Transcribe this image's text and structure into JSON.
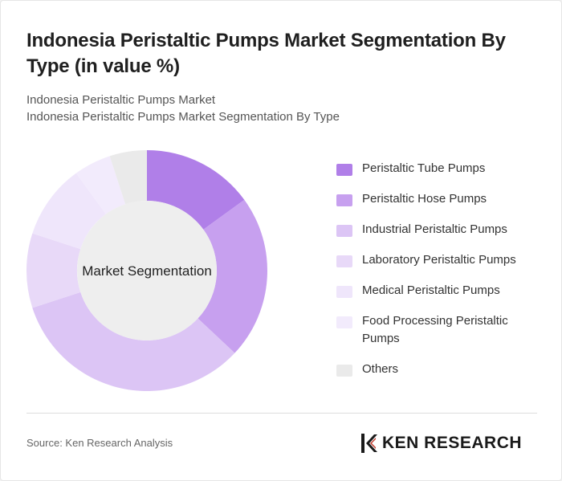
{
  "title": "Indonesia Peristaltic Pumps Market Segmentation By Type (in value %)",
  "subtitle_line1": "Indonesia Peristaltic Pumps Market",
  "subtitle_line2": "Indonesia Peristaltic Pumps Market Segmentation By Type",
  "source": "Source: Ken Research Analysis",
  "logo": {
    "text": "KEN RESEARCH",
    "icon": "ken-research-k-logo-icon"
  },
  "chart_data": {
    "type": "pie",
    "variant": "donut",
    "center_label": "Market Segmentation",
    "legend_position": "right",
    "categories": [
      "Peristaltic Tube Pumps",
      "Peristaltic Hose Pumps",
      "Industrial Peristaltic Pumps",
      "Laboratory Peristaltic Pumps",
      "Medical Peristaltic Pumps",
      "Food Processing Peristaltic Pumps",
      "Others"
    ],
    "values": [
      15,
      22,
      33,
      10,
      10,
      5,
      5
    ],
    "unit": "%",
    "colors": [
      "#b07fe8",
      "#c7a0ef",
      "#dcc5f5",
      "#e8d9f8",
      "#efe6fb",
      "#f2ebfc",
      "#eaeaea"
    ]
  }
}
